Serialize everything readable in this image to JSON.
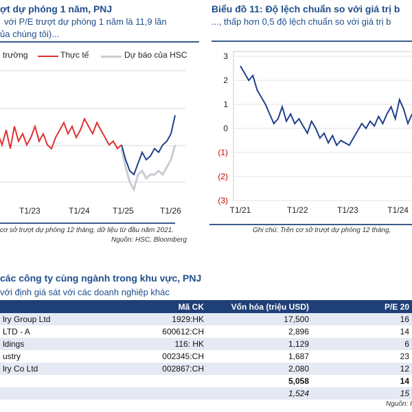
{
  "left": {
    "title": "ợt dự phóng 1 năm, PNJ",
    "subtitle_line1": "với P/E trượt dự phóng 1 năm là 11,9 lần",
    "subtitle_line2": "ủa chúng tôi)...",
    "legend": [
      "trường",
      "Thực tế",
      "Dự báo của HSC"
    ],
    "caption": "cơ sở trượt dự phóng 12 tháng, dữ liệu từ đầu năm 2021.",
    "source": "Nguồn: HSC, Bloomberg"
  },
  "right": {
    "title": "Biểu đồ 11: Độ lệch chuẩn so với giá trị b",
    "subtitle": "..., thấp hơn 0,5 độ lệch chuẩn so với giá trị b",
    "caption": "Ghi chú: Trên cơ sở trượt dự phóng 12 tháng,"
  },
  "chart_data": [
    {
      "type": "line",
      "xticks": [
        "T1/23",
        "T1/24",
        "T1/25",
        "T1/26"
      ],
      "colors": {
        "actual": "#e03030",
        "forecast": "#c8ccd4",
        "market": "#1f3f8c"
      },
      "series": [
        {
          "name": "Thực tế",
          "start": "2022-05",
          "values": [
            1.3,
            1.0,
            1.4,
            0.9,
            1.5,
            1.1,
            1.3,
            1.0,
            1.2,
            1.5,
            1.1,
            1.3,
            1.0,
            0.9,
            1.2,
            1.4,
            1.6,
            1.3,
            1.5,
            1.2,
            1.4,
            1.7,
            1.5,
            1.3,
            1.6,
            1.4,
            1.2,
            1.0,
            1.1,
            0.9,
            1.0
          ]
        },
        {
          "name": "Dự báo của HSC",
          "start": "2024-11",
          "values": [
            0.9,
            0.4,
            0.0,
            -0.2,
            0.2,
            0.3,
            0.1,
            0.2,
            0.2,
            0.3,
            0.2,
            0.4,
            0.6,
            1.0
          ]
        },
        {
          "name": "",
          "start": "2024-11",
          "values": [
            1.0,
            0.6,
            0.3,
            0.2,
            0.5,
            0.8,
            0.6,
            0.7,
            0.9,
            0.8,
            1.0,
            1.1,
            1.3,
            1.8
          ]
        }
      ]
    },
    {
      "type": "line",
      "ylim": [
        -3,
        3
      ],
      "yticks": [
        "3",
        "2",
        "1",
        "0",
        "(1)",
        "(2)",
        "(3)"
      ],
      "xticks": [
        "T1/21",
        "T1/22",
        "T1/23",
        "T1/24"
      ],
      "color": "#1f3f8c",
      "series": [
        {
          "start": "2021-01",
          "values": [
            2.6,
            2.3,
            2.0,
            2.2,
            1.6,
            1.3,
            1.0,
            0.6,
            0.2,
            0.4,
            0.9,
            0.3,
            0.6,
            0.2,
            0.4,
            0.1,
            -0.2,
            0.3,
            0.0,
            -0.4,
            -0.2,
            -0.6,
            -0.3,
            -0.7,
            -0.5,
            -0.6,
            -0.7,
            -0.4,
            -0.1,
            0.2,
            0.0,
            0.3,
            0.1,
            0.5,
            0.2,
            0.6,
            0.9,
            0.4,
            1.2,
            0.8,
            0.2,
            0.6
          ]
        }
      ]
    }
  ],
  "table": {
    "title": "các công ty cùng ngành trong khu vực, PNJ",
    "subtitle": "với định giá sát với các doanh nghiệp khác",
    "headers": [
      "",
      "Mã CK",
      "Vốn hóa (triệu USD)",
      "P/E 20"
    ],
    "rows": [
      [
        "lry Group Ltd",
        "1929:HK",
        "17,500",
        "16"
      ],
      [
        "LTD - A",
        "600612:CH",
        "2,896",
        "14"
      ],
      [
        "ldings",
        "116: HK",
        "1,129",
        "6"
      ],
      [
        "ustry",
        "002345:CH",
        "1,687",
        "23"
      ],
      [
        "lry Co Ltd",
        "002867:CH",
        "2,080",
        "12"
      ],
      [
        "",
        "",
        "5,058",
        "14"
      ],
      [
        "",
        "",
        "1,524",
        "15"
      ]
    ],
    "source": "Nguồn: I"
  }
}
